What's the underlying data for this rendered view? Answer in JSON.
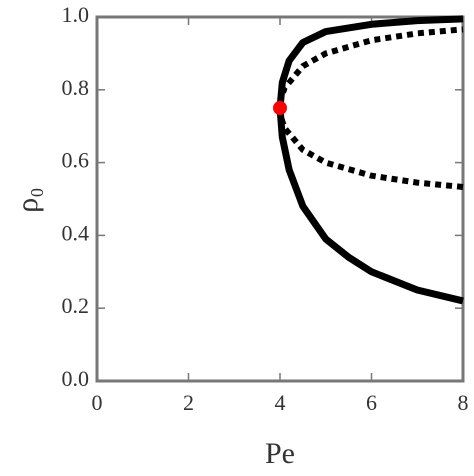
{
  "chart_data": {
    "type": "line",
    "xlabel": "Pe",
    "ylabel": "ρ₀",
    "xlim": [
      0,
      8
    ],
    "ylim": [
      0,
      1
    ],
    "xticks": [
      0,
      2,
      4,
      6,
      8
    ],
    "yticks": [
      {
        "value": 0,
        "label": "0.0"
      },
      {
        "value": 0.2,
        "label": "0.2"
      },
      {
        "value": 0.4,
        "label": "0.4"
      },
      {
        "value": 0.6,
        "label": "0.6"
      },
      {
        "value": 0.8,
        "label": "0.8"
      },
      {
        "value": 1,
        "label": "1.0"
      }
    ],
    "series": [
      {
        "style": "solid",
        "color": "#000000",
        "x": [
          8,
          7,
          6,
          5.5,
          5,
          4.5,
          4.2,
          4.05,
          4,
          4.05,
          4.2,
          4.5,
          5,
          6,
          7,
          8
        ],
        "values": [
          0.22,
          0.25,
          0.3,
          0.34,
          0.39,
          0.48,
          0.58,
          0.67,
          0.75,
          0.82,
          0.88,
          0.93,
          0.96,
          0.98,
          0.99,
          0.995
        ]
      },
      {
        "style": "dotted",
        "color": "#000000",
        "x": [
          8,
          7,
          6,
          5,
          4.5,
          4.1,
          4.02,
          4,
          4.02,
          4.1,
          4.5,
          5,
          6,
          7,
          8
        ],
        "values": [
          0.533,
          0.545,
          0.564,
          0.6,
          0.635,
          0.695,
          0.725,
          0.75,
          0.775,
          0.805,
          0.865,
          0.9,
          0.936,
          0.955,
          0.966
        ]
      }
    ],
    "points": [
      {
        "color": "#ff0000",
        "x": 4,
        "value": 0.75
      }
    ]
  }
}
